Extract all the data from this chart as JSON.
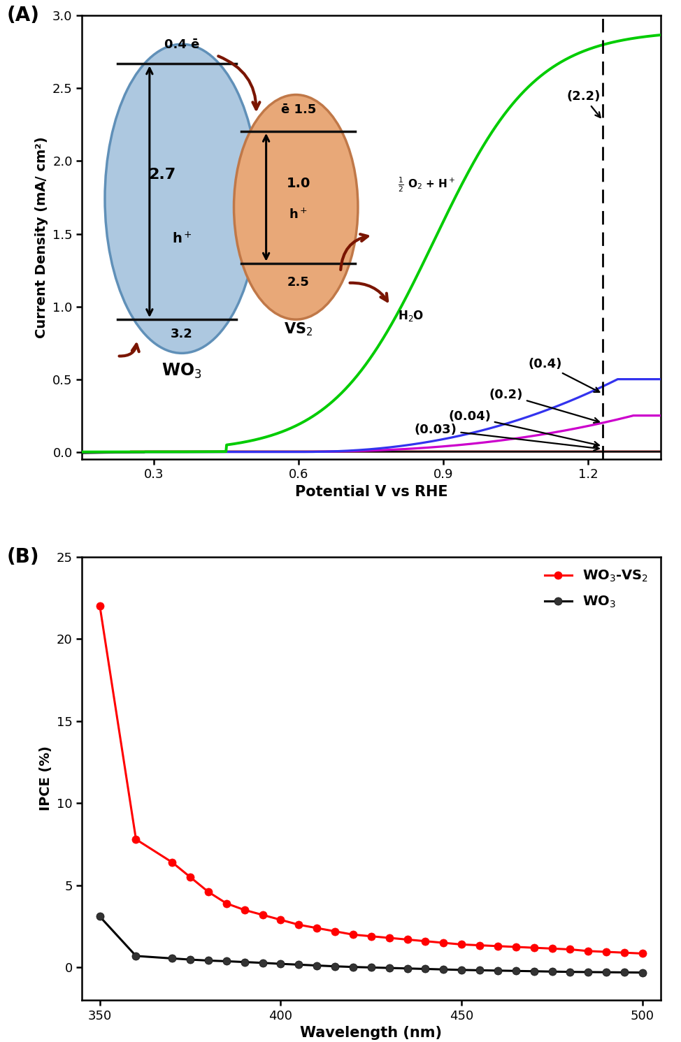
{
  "panel_A": {
    "xlabel": "Potential V vs RHE",
    "ylabel": "Current Density (mA/ cm²)",
    "ylim": [
      -0.05,
      3.0
    ],
    "xlim": [
      0.15,
      1.35
    ],
    "xticks": [
      0.3,
      0.6,
      0.9,
      1.2
    ],
    "yticks": [
      0.0,
      0.5,
      1.0,
      1.5,
      2.0,
      2.5,
      3.0
    ],
    "dashed_x": 1.23
  },
  "panel_B": {
    "xlabel": "Wavelength (nm)",
    "ylabel": "IPCE (%)",
    "ylim": [
      -2,
      25
    ],
    "xlim": [
      345,
      505
    ],
    "xticks": [
      350,
      400,
      450,
      500
    ],
    "yticks": [
      0,
      5,
      10,
      15,
      20,
      25
    ],
    "red_label": "WO$_3$-VS$_2$",
    "black_label": "WO$_3$",
    "red_x": [
      350,
      360,
      370,
      375,
      380,
      385,
      390,
      395,
      400,
      405,
      410,
      415,
      420,
      425,
      430,
      435,
      440,
      445,
      450,
      455,
      460,
      465,
      470,
      475,
      480,
      485,
      490,
      495,
      500
    ],
    "red_y": [
      22.0,
      7.8,
      6.4,
      5.5,
      4.6,
      3.9,
      3.5,
      3.2,
      2.9,
      2.6,
      2.4,
      2.2,
      2.0,
      1.9,
      1.8,
      1.7,
      1.6,
      1.5,
      1.4,
      1.35,
      1.3,
      1.25,
      1.2,
      1.15,
      1.1,
      1.0,
      0.95,
      0.9,
      0.85
    ],
    "black_x": [
      350,
      360,
      370,
      375,
      380,
      385,
      390,
      395,
      400,
      405,
      410,
      415,
      420,
      425,
      430,
      435,
      440,
      445,
      450,
      455,
      460,
      465,
      470,
      475,
      480,
      485,
      490,
      495,
      500
    ],
    "black_y": [
      3.1,
      0.7,
      0.55,
      0.48,
      0.42,
      0.38,
      0.33,
      0.28,
      0.22,
      0.17,
      0.12,
      0.07,
      0.03,
      0.0,
      -0.03,
      -0.06,
      -0.09,
      -0.12,
      -0.15,
      -0.17,
      -0.19,
      -0.21,
      -0.23,
      -0.25,
      -0.27,
      -0.28,
      -0.29,
      -0.3,
      -0.31
    ]
  },
  "inset": {
    "wo3_color": "#adc8e0",
    "wo3_edge": "#6090b8",
    "vs2_color": "#e8a878",
    "vs2_edge": "#c07848",
    "line_color": "#111111",
    "arrow_color": "#7a1500",
    "text_color": "#000000"
  }
}
